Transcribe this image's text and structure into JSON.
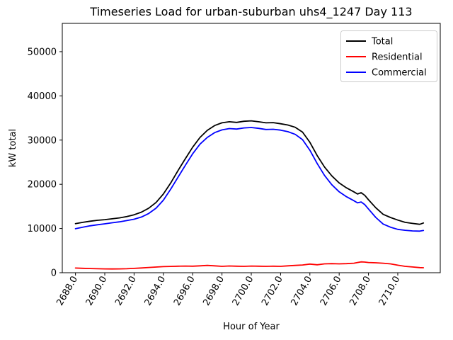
{
  "title": "Timeseries Load for urban-suburban uhs4_1247  Day 113",
  "chart_data": {
    "type": "line",
    "title": "Timeseries Load for urban-suburban uhs4_1247  Day 113",
    "xlabel": "Hour of Year",
    "ylabel": "kW total",
    "xlim": [
      2687.1,
      2712.9
    ],
    "ylim": [
      0,
      56400
    ],
    "grid": false,
    "x_tick_rotation": 60,
    "xticks": [
      2688,
      2690,
      2692,
      2694,
      2696,
      2698,
      2700,
      2702,
      2704,
      2706,
      2708,
      2710
    ],
    "xticklabels": [
      "2688.0",
      "2690.0",
      "2692.0",
      "2694.0",
      "2696.0",
      "2698.0",
      "2700.0",
      "2702.0",
      "2704.0",
      "2706.0",
      "2708.0",
      "2710.0"
    ],
    "yticks": [
      0,
      10000,
      20000,
      30000,
      40000,
      50000
    ],
    "yticklabels": [
      "0",
      "10000",
      "20000",
      "30000",
      "40000",
      "50000"
    ],
    "legend": {
      "position": "upper right",
      "entries": [
        "Total",
        "Residential",
        "Commercial"
      ]
    },
    "x": [
      2688,
      2688.5,
      2689,
      2689.5,
      2690,
      2690.5,
      2691,
      2691.5,
      2692,
      2692.5,
      2693,
      2693.5,
      2694,
      2694.5,
      2695,
      2695.5,
      2696,
      2696.5,
      2697,
      2697.5,
      2698,
      2698.5,
      2699,
      2699.5,
      2700,
      2700.5,
      2701,
      2701.5,
      2702,
      2702.5,
      2703,
      2703.5,
      2704,
      2704.5,
      2705,
      2705.5,
      2706,
      2706.5,
      2707,
      2707.25,
      2707.5,
      2707.75,
      2708,
      2708.5,
      2709,
      2709.5,
      2710,
      2710.5,
      2711,
      2711.5,
      2711.75
    ],
    "series": [
      {
        "name": "Total",
        "color": "#000000",
        "values": [
          11100,
          11400,
          11650,
          11850,
          12000,
          12200,
          12400,
          12700,
          13100,
          13700,
          14600,
          15900,
          17800,
          20300,
          23100,
          25800,
          28400,
          30600,
          32200,
          33300,
          33900,
          34150,
          34000,
          34250,
          34350,
          34150,
          33900,
          33950,
          33700,
          33400,
          32900,
          31800,
          29500,
          26500,
          23900,
          21900,
          20300,
          19200,
          18300,
          17800,
          18100,
          17500,
          16500,
          14700,
          13200,
          12500,
          11900,
          11400,
          11150,
          10950,
          11250
        ]
      },
      {
        "name": "Residential",
        "color": "#ff0000",
        "values": [
          1050,
          1000,
          950,
          900,
          870,
          850,
          860,
          900,
          980,
          1080,
          1180,
          1280,
          1380,
          1430,
          1480,
          1500,
          1480,
          1550,
          1650,
          1550,
          1450,
          1520,
          1480,
          1450,
          1500,
          1480,
          1450,
          1480,
          1450,
          1550,
          1650,
          1750,
          1950,
          1800,
          2000,
          2050,
          2000,
          2050,
          2150,
          2300,
          2450,
          2400,
          2300,
          2250,
          2150,
          2000,
          1700,
          1450,
          1300,
          1150,
          1120
        ]
      },
      {
        "name": "Commercial",
        "color": "#0000ff",
        "values": [
          9950,
          10300,
          10600,
          10850,
          11050,
          11300,
          11500,
          11800,
          12100,
          12600,
          13400,
          14600,
          16400,
          18900,
          21600,
          24300,
          26900,
          29100,
          30600,
          31700,
          32300,
          32600,
          32500,
          32750,
          32850,
          32650,
          32400,
          32450,
          32250,
          31900,
          31300,
          30100,
          27700,
          24700,
          22000,
          19900,
          18300,
          17200,
          16300,
          15800,
          16000,
          15400,
          14400,
          12500,
          11000,
          10300,
          9800,
          9600,
          9450,
          9400,
          9550
        ]
      }
    ]
  }
}
